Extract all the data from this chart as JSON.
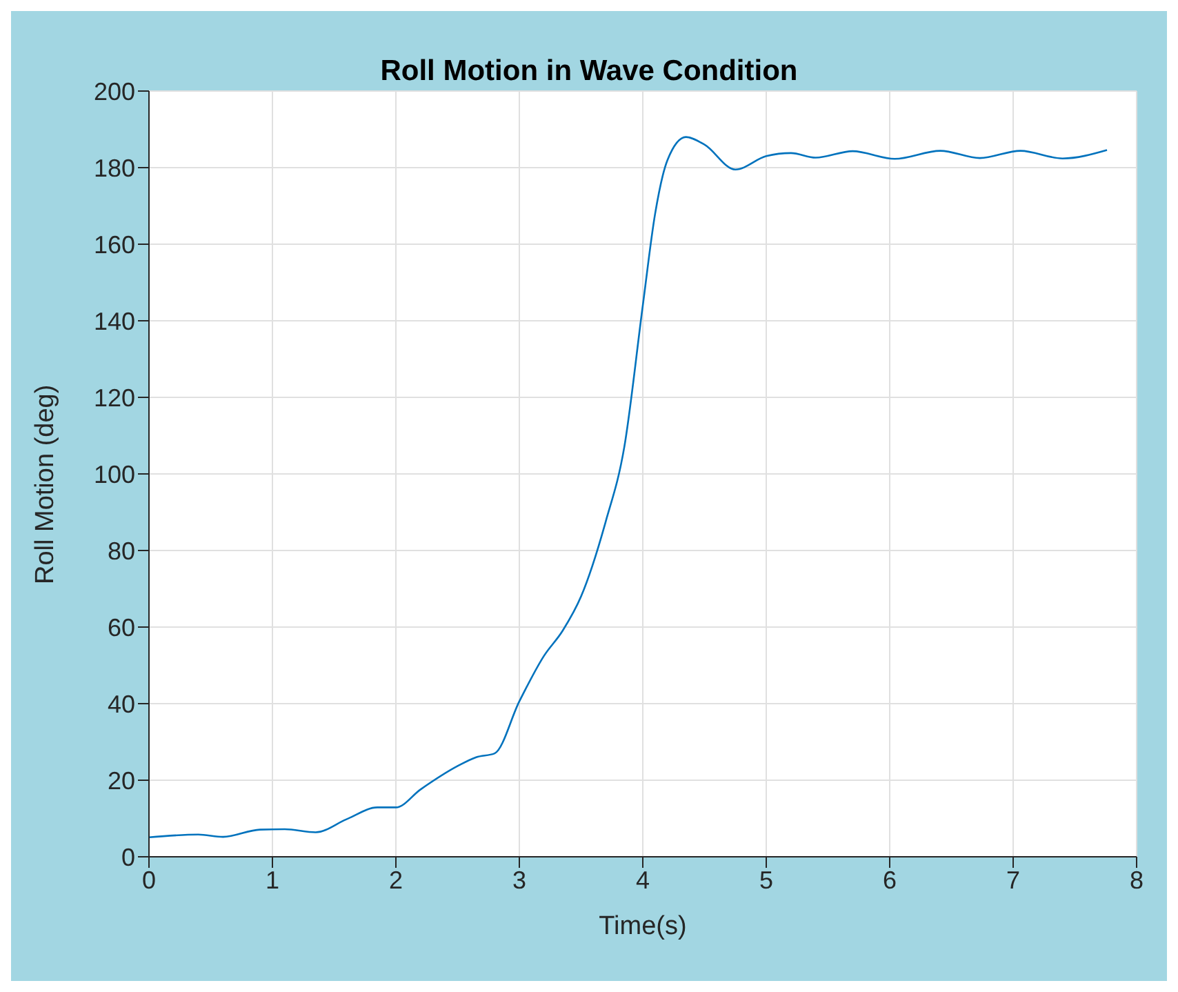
{
  "chart_data": {
    "type": "line",
    "title": "Roll Motion in Wave Condition",
    "xlabel": "Time(s)",
    "ylabel": "Roll Motion (deg)",
    "x": [
      0,
      0.4,
      0.6,
      0.9,
      1.1,
      1.35,
      1.6,
      1.85,
      2.0,
      2.2,
      2.5,
      2.65,
      2.8,
      3.0,
      3.2,
      3.35,
      3.5,
      3.7,
      3.85,
      4.0,
      4.1,
      4.2,
      4.35,
      4.5,
      4.75,
      5.0,
      5.2,
      5.4,
      5.7,
      6.04,
      6.41,
      6.73,
      7.06,
      7.4,
      7.76
    ],
    "series": [
      {
        "color": "#0072bd",
        "values": [
          5.1,
          5.8,
          5.2,
          7.1,
          7.2,
          6.4,
          9.8,
          12.9,
          12.9,
          17.6,
          23.7,
          26,
          27,
          40.6,
          52.5,
          59,
          68,
          87.6,
          107,
          144,
          168,
          182,
          188,
          186,
          179.5,
          183,
          183.8,
          182.6,
          184.3,
          182.3,
          184.4,
          182.5,
          184.4,
          182.4,
          184.6
        ]
      }
    ],
    "xlim": [
      0,
      8
    ],
    "xticks": [
      0,
      1,
      2,
      3,
      4,
      5,
      6,
      7,
      8
    ],
    "ylim": [
      0,
      200
    ],
    "yticks": [
      0,
      20,
      40,
      60,
      80,
      100,
      120,
      140,
      160,
      180,
      200
    ],
    "grid": true,
    "marker": "none",
    "line_style": "solid"
  }
}
